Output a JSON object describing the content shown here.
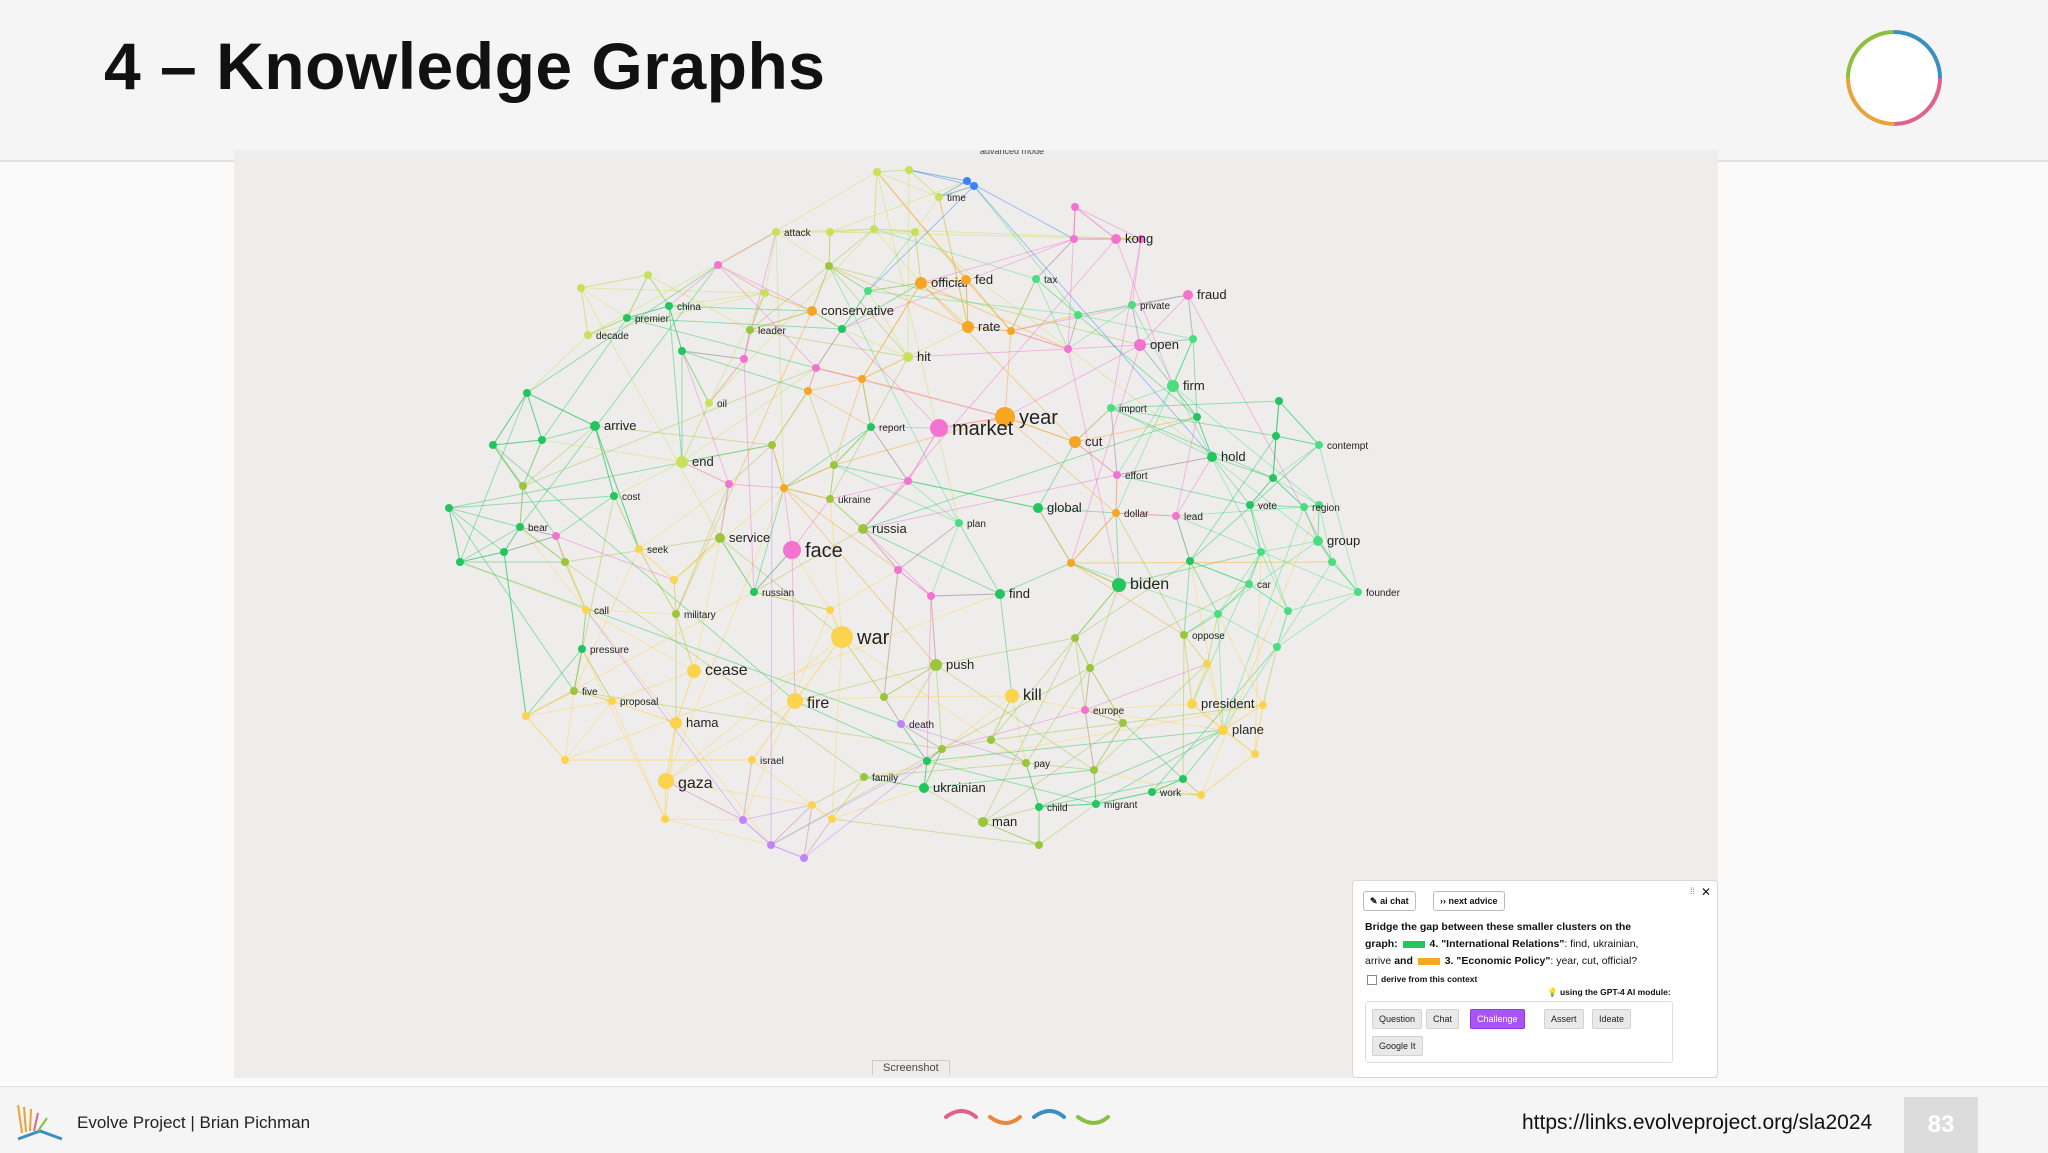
{
  "slide": {
    "title": "4 – Knowledge Graphs",
    "page_number": "83"
  },
  "footer": {
    "left_text": "Evolve Project | Brian Pichman",
    "url": "https://links.evolveproject.org/sla2024"
  },
  "graph": {
    "top_label": "advanced mode",
    "caption": "Screenshot",
    "colors": {
      "green": "#22c55e",
      "mint": "#4ade80",
      "orange": "#f5a623",
      "pink": "#f472d0",
      "yellow": "#fcd34d",
      "lime": "#a3d635",
      "purple": "#c084fc"
    },
    "nodes": [
      {
        "label": "time",
        "color": "#c8e05a"
      },
      {
        "label": "attack",
        "color": "#c8e05a"
      },
      {
        "label": "kong",
        "color": "#f472d0"
      },
      {
        "label": "official",
        "color": "#f5a623"
      },
      {
        "label": "fed",
        "color": "#f5a623"
      },
      {
        "label": "tax",
        "color": "#4ade80"
      },
      {
        "label": "fraud",
        "color": "#f472d0"
      },
      {
        "label": "china",
        "color": "#22c55e"
      },
      {
        "label": "premier",
        "color": "#22c55e"
      },
      {
        "label": "conservative",
        "color": "#f5a623"
      },
      {
        "label": "private",
        "color": "#4ade80"
      },
      {
        "label": "decade",
        "color": "#c8e05a"
      },
      {
        "label": "leader",
        "color": "#9bc53d"
      },
      {
        "label": "rate",
        "color": "#f5a623"
      },
      {
        "label": "open",
        "color": "#f472d0"
      },
      {
        "label": "hit",
        "color": "#c8e05a"
      },
      {
        "label": "firm",
        "color": "#4ade80"
      },
      {
        "label": "oil",
        "color": "#c8e05a"
      },
      {
        "label": "import",
        "color": "#4ade80"
      },
      {
        "label": "year",
        "color": "#f5a623"
      },
      {
        "label": "arrive",
        "color": "#22c55e"
      },
      {
        "label": "report",
        "color": "#22c55e"
      },
      {
        "label": "market",
        "color": "#f472d0"
      },
      {
        "label": "cut",
        "color": "#f5a623"
      },
      {
        "label": "contempt",
        "color": "#4ade80"
      },
      {
        "label": "end",
        "color": "#c8e05a"
      },
      {
        "label": "hold",
        "color": "#22c55e"
      },
      {
        "label": "effort",
        "color": "#f472d0"
      },
      {
        "label": "cost",
        "color": "#22c55e"
      },
      {
        "label": "ukraine",
        "color": "#9bc53d"
      },
      {
        "label": "vote",
        "color": "#22c55e"
      },
      {
        "label": "region",
        "color": "#4ade80"
      },
      {
        "label": "global",
        "color": "#22c55e"
      },
      {
        "label": "dollar",
        "color": "#f5a623"
      },
      {
        "label": "lead",
        "color": "#f472d0"
      },
      {
        "label": "bear",
        "color": "#22c55e"
      },
      {
        "label": "plan",
        "color": "#4ade80"
      },
      {
        "label": "russia",
        "color": "#9bc53d"
      },
      {
        "label": "group",
        "color": "#4ade80"
      },
      {
        "label": "service",
        "color": "#9bc53d"
      },
      {
        "label": "seek",
        "color": "#fcd34d"
      },
      {
        "label": "face",
        "color": "#f472d0"
      },
      {
        "label": "biden",
        "color": "#22c55e"
      },
      {
        "label": "russian",
        "color": "#22c55e"
      },
      {
        "label": "find",
        "color": "#22c55e"
      },
      {
        "label": "car",
        "color": "#4ade80"
      },
      {
        "label": "founder",
        "color": "#4ade80"
      },
      {
        "label": "call",
        "color": "#fcd34d"
      },
      {
        "label": "military",
        "color": "#9bc53d"
      },
      {
        "label": "war",
        "color": "#fcd34d"
      },
      {
        "label": "oppose",
        "color": "#9bc53d"
      },
      {
        "label": "pressure",
        "color": "#22c55e"
      },
      {
        "label": "push",
        "color": "#9bc53d"
      },
      {
        "label": "cease",
        "color": "#fcd34d"
      },
      {
        "label": "five",
        "color": "#9bc53d"
      },
      {
        "label": "proposal",
        "color": "#fcd34d"
      },
      {
        "label": "fire",
        "color": "#fcd34d"
      },
      {
        "label": "kill",
        "color": "#fcd34d"
      },
      {
        "label": "europe",
        "color": "#f472d0"
      },
      {
        "label": "president",
        "color": "#fcd34d"
      },
      {
        "label": "hama",
        "color": "#fcd34d"
      },
      {
        "label": "death",
        "color": "#c084fc"
      },
      {
        "label": "plane",
        "color": "#fcd34d"
      },
      {
        "label": "israel",
        "color": "#fcd34d"
      },
      {
        "label": "pay",
        "color": "#9bc53d"
      },
      {
        "label": "family",
        "color": "#9bc53d"
      },
      {
        "label": "gaza",
        "color": "#fcd34d"
      },
      {
        "label": "ukrainian",
        "color": "#22c55e"
      },
      {
        "label": "work",
        "color": "#22c55e"
      },
      {
        "label": "child",
        "color": "#22c55e"
      },
      {
        "label": "migrant",
        "color": "#22c55e"
      },
      {
        "label": "man",
        "color": "#9bc53d"
      }
    ]
  },
  "panel": {
    "tab_ai_chat": "ai chat",
    "tab_next_advice": "next advice",
    "close": "✕",
    "drag": "⁞⁞",
    "line1": "Bridge the gap between these smaller clusters on the",
    "line2a": "graph:",
    "cluster4": "4. \"International Relations\"",
    "line2b": ": find, ukrainian,",
    "line3a": "arrive",
    "line3and": "and",
    "cluster3": "3. \"Economic Policy\"",
    "line3b": ": year, cut, official?",
    "checkbox_label": "derive from this context",
    "module_note": "using the GPT-4 AI module:",
    "buttons": [
      "Question",
      "Chat",
      "Challenge",
      "Assert",
      "Ideate",
      "Google It"
    ],
    "active_button": "Challenge",
    "cluster4_color": "#22c55e",
    "cluster3_color": "#f5a623"
  },
  "decor": {
    "wave_colors": [
      "#e0628c",
      "#e8883a",
      "#3a8fc0",
      "#8cbf3f"
    ],
    "ring_colors": [
      "#e0628c",
      "#e8a33a",
      "#8cbf3f",
      "#3a8fc0"
    ]
  }
}
